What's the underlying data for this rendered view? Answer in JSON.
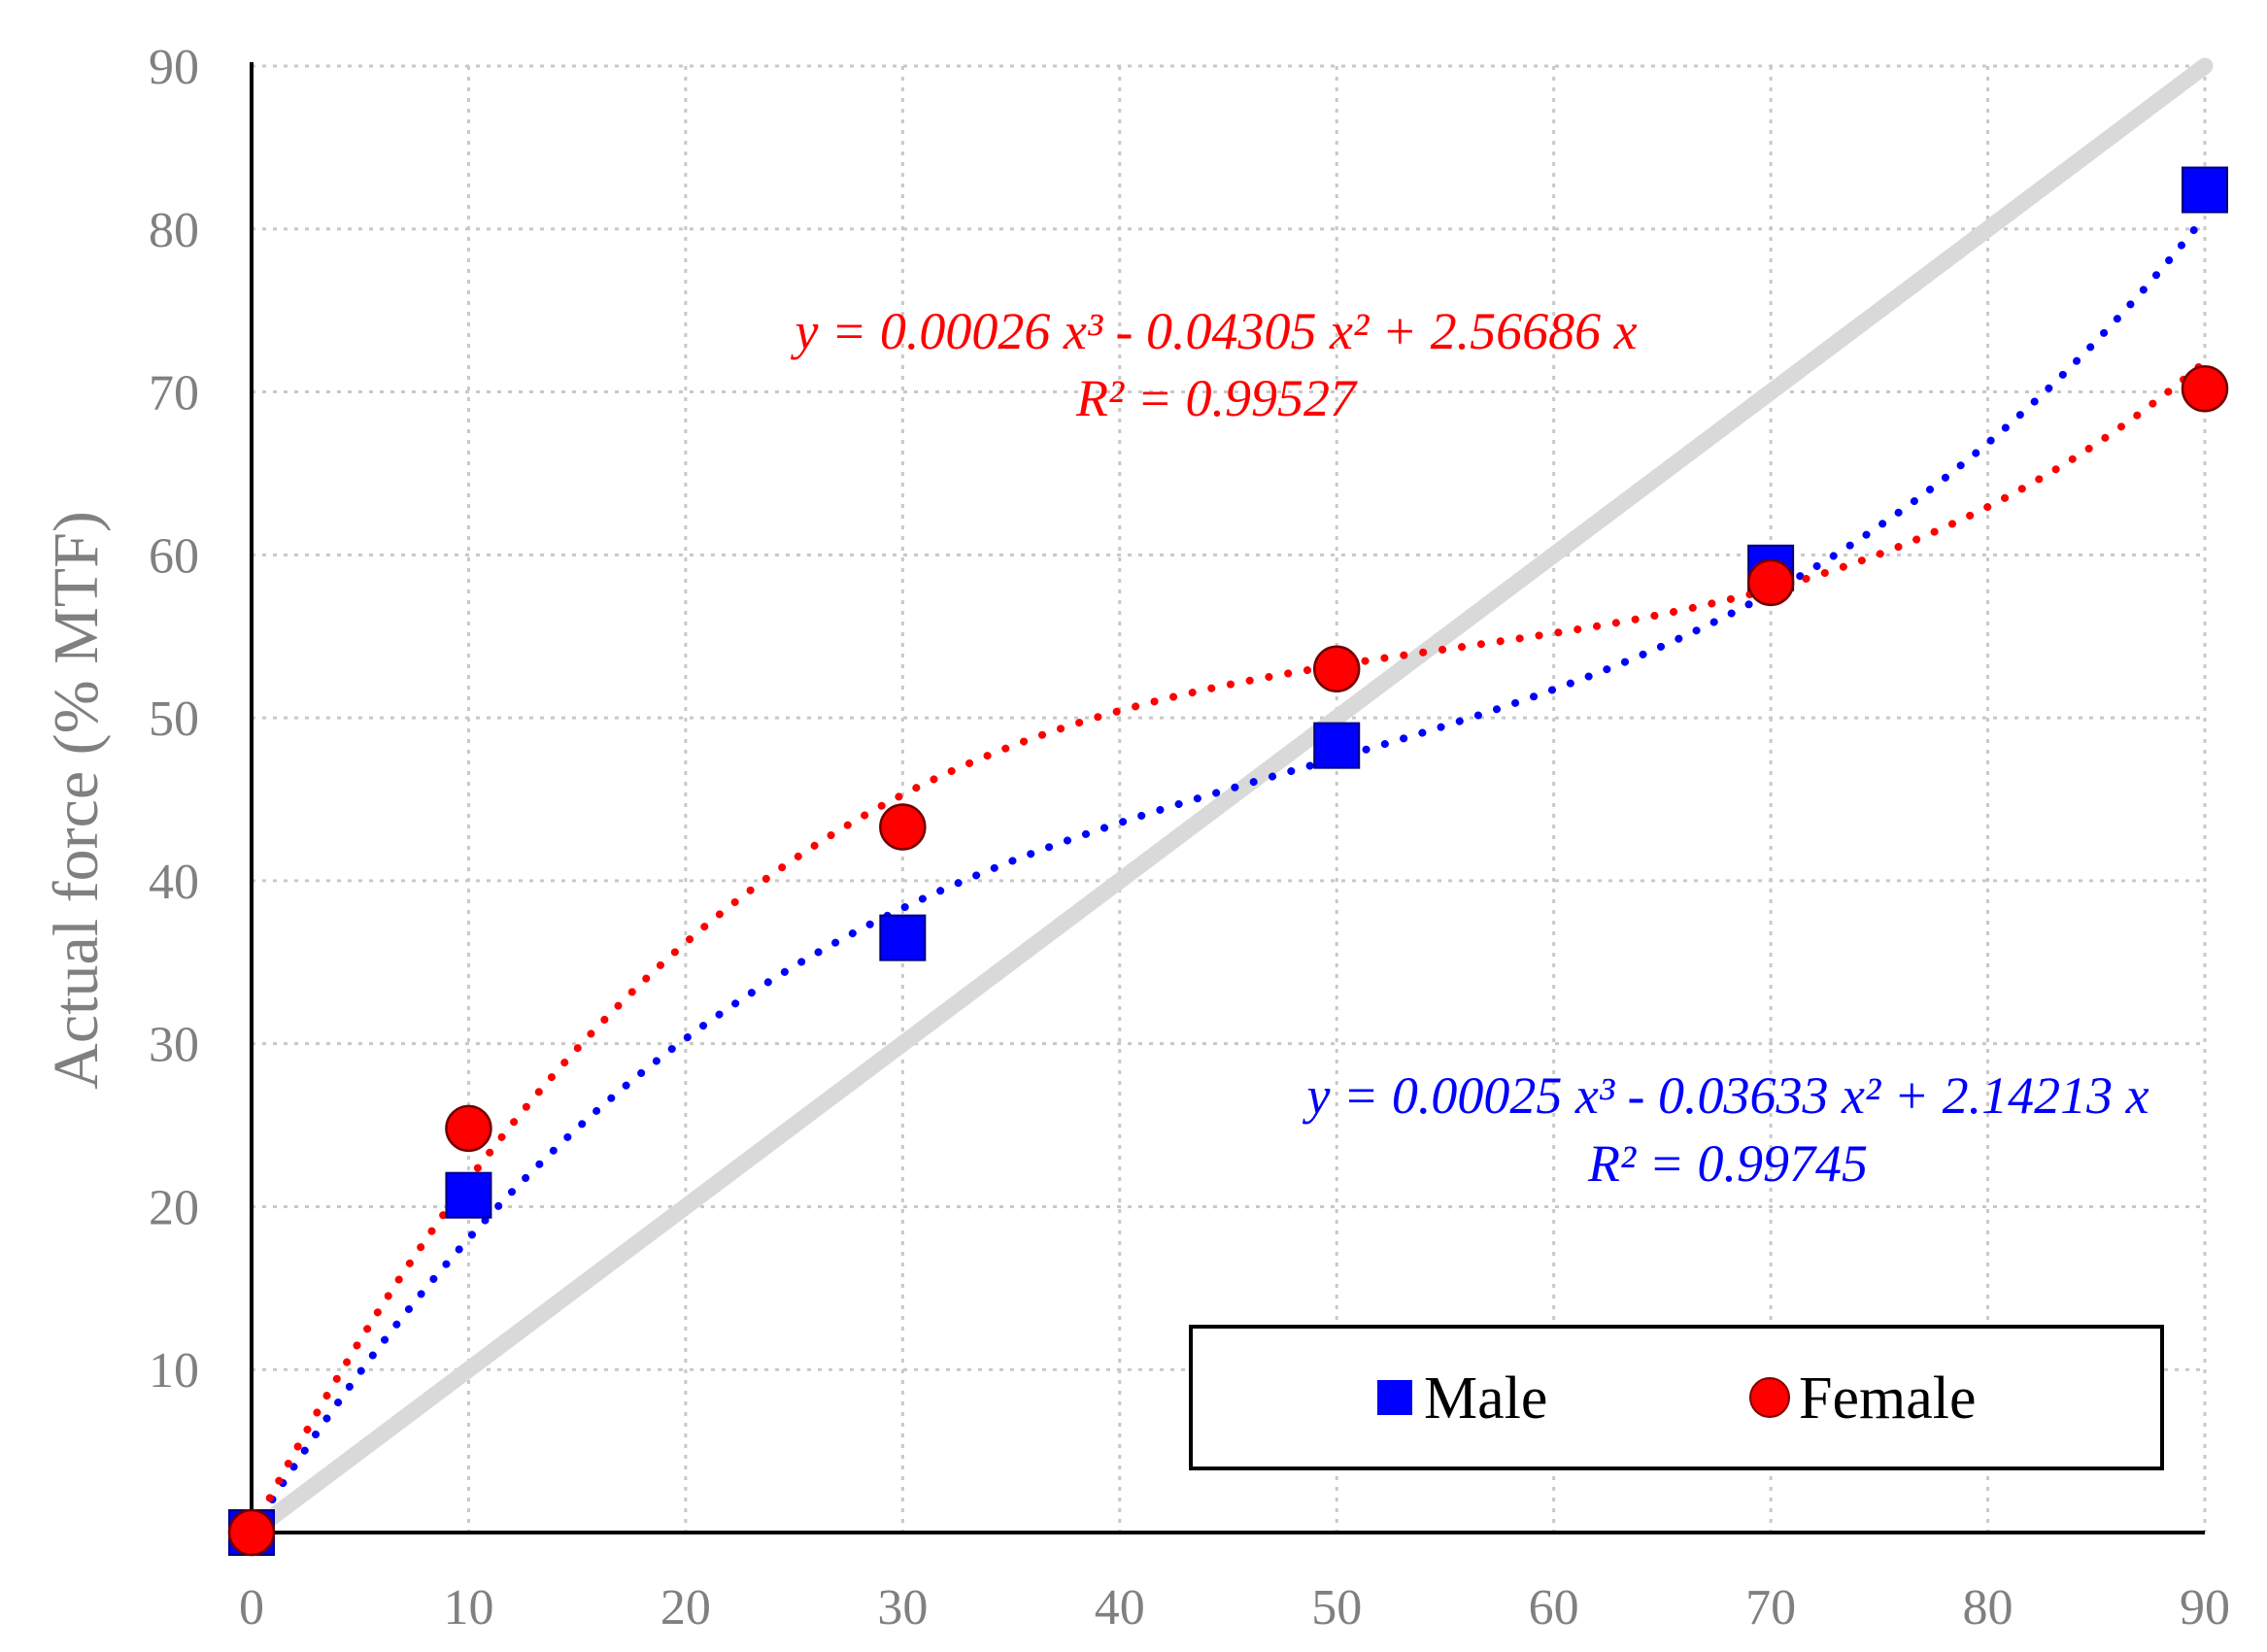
{
  "chart_data": {
    "type": "scatter",
    "title": "",
    "xlabel": "",
    "ylabel": "Actual force (% MTF)",
    "xlim": [
      0,
      90
    ],
    "ylim": [
      0,
      90
    ],
    "xticks": [
      0,
      10,
      20,
      30,
      40,
      50,
      60,
      70,
      80,
      90
    ],
    "yticks": [
      10,
      20,
      30,
      40,
      50,
      60,
      70,
      80,
      90
    ],
    "grid": true,
    "legend_position": "bottom-right",
    "reference_line": {
      "name": "identity",
      "x": [
        0,
        90
      ],
      "y": [
        0,
        90
      ],
      "color": "#d9d9d9"
    },
    "series": [
      {
        "name": "Male",
        "marker": "square",
        "color": "#0000ff",
        "x": [
          0,
          10,
          30,
          50,
          70,
          90
        ],
        "y": [
          0,
          20.7,
          36.5,
          48.3,
          59.2,
          82.4
        ],
        "trendline": {
          "type": "poly3",
          "coefficients": [
            0.00025,
            -0.03633,
            2.14213,
            0
          ],
          "equation": "y = 0.00025 x³ - 0.03633 x² + 2.14213 x",
          "r2": "R² = 0.99745"
        }
      },
      {
        "name": "Female",
        "marker": "circle",
        "color": "#ff0000",
        "x": [
          0,
          10,
          30,
          50,
          70,
          90
        ],
        "y": [
          0,
          24.8,
          43.3,
          53.0,
          58.3,
          70.2
        ],
        "trendline": {
          "type": "poly3",
          "coefficients": [
            0.00026,
            -0.04305,
            2.56686,
            0
          ],
          "equation": "y = 0.00026 x³ - 0.04305 x² + 2.56686 x",
          "r2": "R² = 0.99527"
        }
      }
    ]
  }
}
